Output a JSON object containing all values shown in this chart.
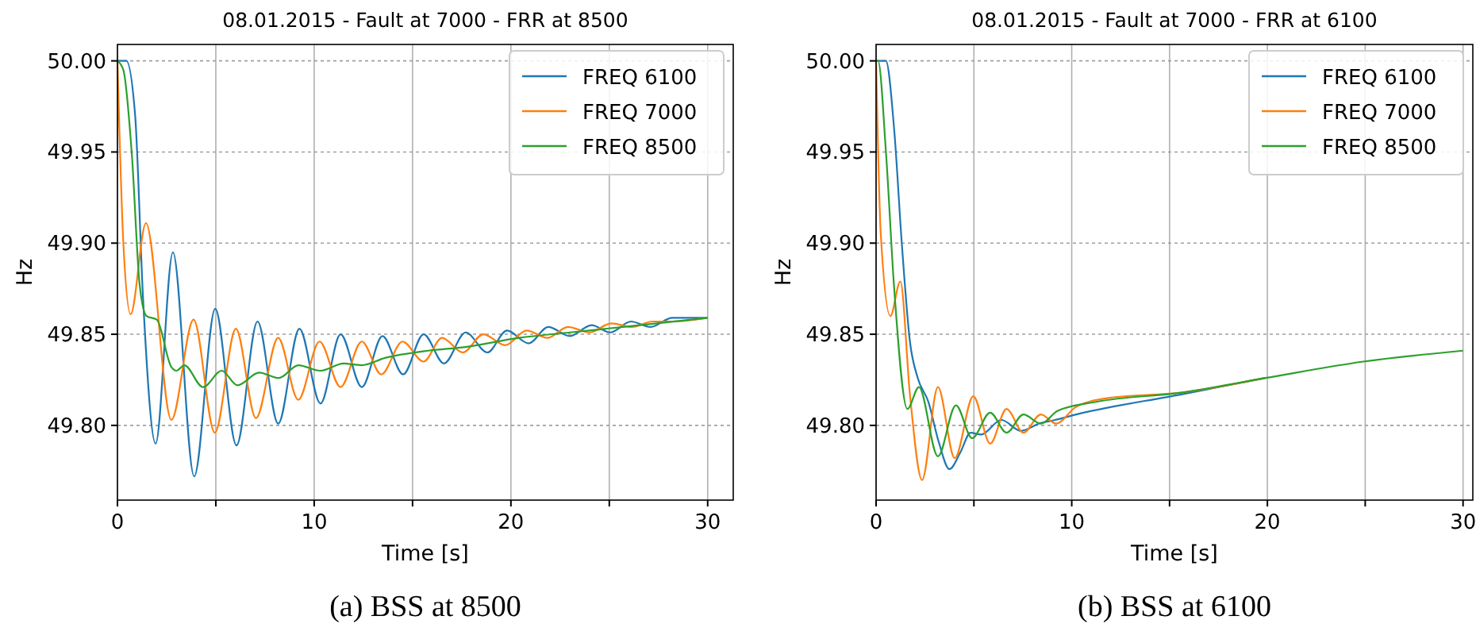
{
  "chart_data": [
    {
      "type": "line",
      "title": "08.01.2015 - Fault at 7000 - FRR at 8500",
      "xlabel": "Time [s]",
      "ylabel": "Hz",
      "annotations": [
        "(a) BSS at 8500"
      ],
      "xlim": [
        0,
        31.3
      ],
      "ylim": [
        49.759,
        50.009
      ],
      "xticks": [
        0,
        {
          "value": 5,
          "label": null
        },
        10,
        {
          "value": 15,
          "label": null
        },
        20,
        {
          "value": 25,
          "label": null
        },
        30
      ],
      "yticks": [
        {
          "value": 49.8,
          "label": "49.80"
        },
        {
          "value": 49.85,
          "label": "49.85"
        },
        {
          "value": 49.9,
          "label": "49.90"
        },
        {
          "value": 49.95,
          "label": "49.95"
        },
        {
          "value": 50,
          "label": "50.00"
        }
      ],
      "grid": true,
      "legend": "top right",
      "series": [
        {
          "name": "FREQ 6100",
          "color": "#1f77b4",
          "x": [
            0,
            0.45,
            0.9,
            1.3,
            1.94,
            2.82,
            3.9,
            4.97,
            6.05,
            7.12,
            8.17,
            9.25,
            10.32,
            11.34,
            12.42,
            13.47,
            14.52,
            15.56,
            16.6,
            17.7,
            18.8,
            19.8,
            20.9,
            21.9,
            23.0,
            24.1,
            25.05,
            26.1,
            27.1,
            28.2,
            30
          ],
          "values": [
            50,
            50,
            49.97,
            49.87,
            49.79,
            49.895,
            49.772,
            49.864,
            49.789,
            49.857,
            49.801,
            49.853,
            49.812,
            49.85,
            49.821,
            49.849,
            49.828,
            49.85,
            49.834,
            49.851,
            49.84,
            49.852,
            49.845,
            49.854,
            49.849,
            49.855,
            49.851,
            49.857,
            49.854,
            49.859,
            49.859
          ]
        },
        {
          "name": "FREQ 7000",
          "color": "#ff7f0e",
          "x": [
            0,
            0.3,
            0.67,
            1.45,
            2.74,
            3.87,
            4.95,
            6.02,
            7.04,
            8.17,
            9.19,
            10.27,
            11.34,
            12.42,
            13.41,
            14.49,
            15.56,
            16.5,
            17.55,
            18.6,
            19.7,
            20.8,
            21.85,
            22.9,
            24.0,
            25.1,
            26.15,
            27.2,
            28.2,
            30
          ],
          "values": [
            50,
            49.9,
            49.861,
            49.911,
            49.803,
            49.858,
            49.796,
            49.853,
            49.804,
            49.848,
            49.814,
            49.846,
            49.821,
            49.846,
            49.828,
            49.846,
            49.835,
            49.848,
            49.84,
            49.85,
            49.844,
            49.852,
            49.848,
            49.854,
            49.851,
            49.856,
            49.854,
            49.857,
            49.857,
            49.859
          ]
        },
        {
          "name": "FREQ 8500",
          "color": "#2ca02c",
          "x": [
            0,
            0.3,
            0.73,
            1.13,
            1.48,
            2.0,
            2.74,
            3.0,
            3.4,
            4.35,
            5.3,
            6.1,
            7.2,
            8.2,
            9.2,
            10.3,
            11.5,
            12.4,
            13.6,
            15.8,
            17.7,
            20.4,
            23.0,
            25.7,
            30
          ],
          "values": [
            50,
            49.995,
            49.949,
            49.877,
            49.86,
            49.858,
            49.832,
            49.83,
            49.833,
            49.821,
            49.83,
            49.822,
            49.829,
            49.826,
            49.833,
            49.83,
            49.834,
            49.833,
            49.837,
            49.841,
            49.843,
            49.848,
            49.851,
            49.854,
            49.859
          ]
        }
      ]
    },
    {
      "type": "line",
      "title": "08.01.2015 - Fault at 7000 - FRR at 6100",
      "xlabel": "Time [s]",
      "ylabel": "Hz",
      "annotations": [
        "(b) BSS at 6100"
      ],
      "xlim": [
        0,
        30.5
      ],
      "ylim": [
        49.759,
        50.009
      ],
      "xticks": [
        0,
        {
          "value": 5,
          "label": null
        },
        10,
        {
          "value": 15,
          "label": null
        },
        20,
        {
          "value": 25,
          "label": null
        },
        30
      ],
      "yticks": [
        {
          "value": 49.8,
          "label": "49.80"
        },
        {
          "value": 49.85,
          "label": "49.85"
        },
        {
          "value": 49.9,
          "label": "49.90"
        },
        {
          "value": 49.95,
          "label": "49.95"
        },
        {
          "value": 50,
          "label": "50.00"
        }
      ],
      "grid": true,
      "legend": "top right",
      "series": [
        {
          "name": "FREQ 6100",
          "color": "#1f77b4",
          "x": [
            0,
            0.5,
            0.92,
            1.32,
            1.73,
            2.13,
            2.67,
            3.2,
            3.75,
            4.3,
            4.83,
            5.37,
            6.4,
            7.4,
            8.34,
            9.15,
            10.23,
            15.6,
            19.9
          ],
          "values": [
            50,
            50,
            49.963,
            49.899,
            49.846,
            49.826,
            49.813,
            49.791,
            49.776,
            49.785,
            49.796,
            49.795,
            49.803,
            49.797,
            49.801,
            49.803,
            49.806,
            49.817,
            49.826
          ]
        },
        {
          "name": "FREQ 7000",
          "color": "#ff7f0e",
          "x": [
            0,
            0.24,
            0.73,
            1.24,
            1.73,
            2.35,
            3.16,
            4.02,
            4.97,
            5.83,
            6.67,
            7.53,
            8.42,
            9.2,
            10.2,
            11.85,
            15.6,
            19.9
          ],
          "values": [
            50,
            49.905,
            49.86,
            49.879,
            49.817,
            49.77,
            49.821,
            49.782,
            49.816,
            49.79,
            49.809,
            49.796,
            49.806,
            49.801,
            49.81,
            49.815,
            49.818,
            49.826
          ]
        },
        {
          "name": "FREQ 8500",
          "color": "#2ca02c",
          "x": [
            0,
            0.1,
            0.51,
            0.92,
            1.6,
            2.19,
            3.16,
            4.08,
            4.91,
            5.83,
            6.67,
            7.53,
            8.42,
            9.28,
            11.3,
            15.6,
            19.9,
            24.9,
            30
          ],
          "values": [
            50,
            50,
            49.949,
            49.876,
            49.809,
            49.821,
            49.783,
            49.811,
            49.793,
            49.807,
            49.796,
            49.806,
            49.801,
            49.808,
            49.813,
            49.818,
            49.826,
            49.835,
            49.841
          ]
        }
      ]
    }
  ]
}
